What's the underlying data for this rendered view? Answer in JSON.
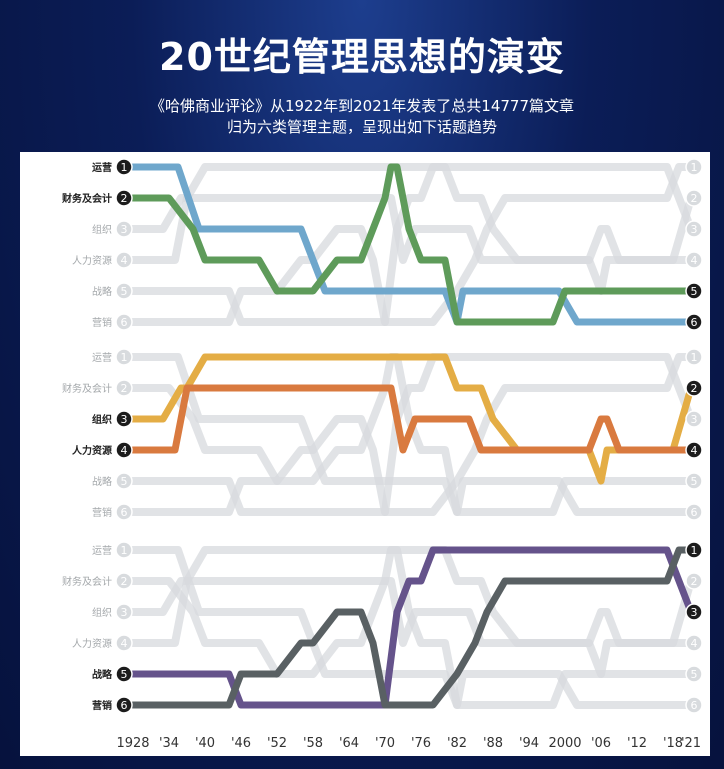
{
  "header": {
    "title": "20世纪管理思想的演变",
    "subtitle_line1": "《哈佛商业评论》从1922年到2021年发表了总共14777篇文章",
    "subtitle_line2": "归为六类管理主题，呈现出如下话题趋势"
  },
  "chart_data": {
    "type": "line",
    "title": "20世纪管理思想的演变",
    "description_lines": [
      "《哈佛商业评论》从1922年到2021年发表了总共14777篇文章",
      "归为六类管理主题，呈现出如下话题趋势"
    ],
    "x_tick_labels": [
      "1928",
      "'34",
      "'40",
      "'46",
      "'52",
      "'58",
      "'64",
      "'70",
      "'76",
      "'82",
      "'88",
      "'94",
      "2000",
      "'06",
      "'12",
      "'18",
      "'21"
    ],
    "x": [
      1928,
      1934,
      1940,
      1946,
      1952,
      1958,
      1964,
      1970,
      1976,
      1982,
      1988,
      1994,
      2000,
      2006,
      2012,
      2018,
      2021
    ],
    "y_axis": "rank (1 = top)",
    "categories": [
      "运营",
      "财务及会计",
      "组织",
      "人力资源",
      "战略",
      "营销"
    ],
    "rank_labels": [
      "1",
      "2",
      "3",
      "4",
      "5",
      "6"
    ],
    "colors": {
      "运营": "#6fa7cc",
      "财务及会计": "#5e9b5a",
      "组织": "#e4ad45",
      "人力资源": "#d97a3f",
      "战略": "#65538b",
      "营销": "#596063",
      "background": "#d7dadd"
    },
    "panels": [
      {
        "highlighted": [
          "运营",
          "财务及会计"
        ],
        "series": [
          {
            "name": "运营",
            "color": "#6fa7cc",
            "points": [
              [
                1928,
                1
              ],
              [
                1934,
                1
              ],
              [
                1935.5,
                1
              ],
              [
                1939,
                3
              ],
              [
                1940,
                3
              ],
              [
                1944,
                3
              ],
              [
                1952,
                3
              ],
              [
                1956,
                3
              ],
              [
                1958,
                4
              ],
              [
                1960,
                5
              ],
              [
                1972,
                5
              ],
              [
                1980,
                5
              ],
              [
                1982,
                6
              ],
              [
                1983,
                5
              ],
              [
                1994,
                5
              ],
              [
                1999,
                5
              ],
              [
                2002,
                6
              ],
              [
                2021,
                6
              ]
            ]
          },
          {
            "name": "财务及会计",
            "color": "#5e9b5a",
            "points": [
              [
                1928,
                2
              ],
              [
                1932,
                2
              ],
              [
                1934,
                2
              ],
              [
                1936,
                2.5
              ],
              [
                1938,
                3
              ],
              [
                1940,
                4
              ],
              [
                1946,
                4
              ],
              [
                1949,
                4
              ],
              [
                1952,
                5
              ],
              [
                1958,
                5
              ],
              [
                1962,
                4
              ],
              [
                1966,
                4
              ],
              [
                1968,
                3
              ],
              [
                1970,
                2
              ],
              [
                1971,
                1
              ],
              [
                1972,
                1
              ],
              [
                1973,
                2
              ],
              [
                1974,
                3
              ],
              [
                1976,
                4
              ],
              [
                1980,
                4
              ],
              [
                1982,
                6
              ],
              [
                1984,
                6
              ],
              [
                1998,
                6
              ],
              [
                2000,
                5
              ],
              [
                2021,
                5
              ]
            ]
          }
        ]
      },
      {
        "highlighted": [
          "组织",
          "人力资源"
        ],
        "series": [
          {
            "name": "组织",
            "color": "#e4ad45",
            "points": [
              [
                1928,
                3
              ],
              [
                1933,
                3
              ],
              [
                1936,
                2
              ],
              [
                1937,
                2
              ],
              [
                1940,
                1
              ],
              [
                1964,
                1
              ],
              [
                1980,
                1
              ],
              [
                1982,
                2
              ],
              [
                1986,
                2
              ],
              [
                1988,
                3
              ],
              [
                1992,
                4
              ],
              [
                2001,
                4
              ],
              [
                2004,
                4
              ],
              [
                2006,
                5
              ],
              [
                2007,
                4
              ],
              [
                2012,
                4
              ],
              [
                2018,
                4
              ],
              [
                2021,
                2
              ]
            ]
          },
          {
            "name": "人力资源",
            "color": "#d97a3f",
            "points": [
              [
                1928,
                4
              ],
              [
                1935,
                4
              ],
              [
                1937,
                2
              ],
              [
                1946,
                2
              ],
              [
                1970,
                2
              ],
              [
                1971,
                2
              ],
              [
                1973,
                4
              ],
              [
                1975,
                3
              ],
              [
                1980,
                3
              ],
              [
                1984,
                3
              ],
              [
                1986,
                4
              ],
              [
                1988,
                4
              ],
              [
                2004,
                4
              ],
              [
                2006,
                3
              ],
              [
                2007,
                3
              ],
              [
                2009,
                4
              ],
              [
                2021,
                4
              ]
            ]
          }
        ]
      },
      {
        "highlighted": [
          "战略",
          "营销"
        ],
        "series": [
          {
            "name": "战略",
            "color": "#65538b",
            "points": [
              [
                1928,
                5
              ],
              [
                1938,
                5
              ],
              [
                1944,
                5
              ],
              [
                1946,
                6
              ],
              [
                1968,
                6
              ],
              [
                1970,
                6
              ],
              [
                1972,
                3
              ],
              [
                1974,
                2
              ],
              [
                1976,
                2
              ],
              [
                1978,
                1
              ],
              [
                1980,
                1
              ],
              [
                2017,
                1
              ],
              [
                2019,
                2
              ],
              [
                2021,
                3
              ]
            ]
          },
          {
            "name": "营销",
            "color": "#596063",
            "points": [
              [
                1928,
                6
              ],
              [
                1940,
                6
              ],
              [
                1944,
                6
              ],
              [
                1946,
                5
              ],
              [
                1950,
                5
              ],
              [
                1952,
                5
              ],
              [
                1956,
                4
              ],
              [
                1958,
                4
              ],
              [
                1962,
                3
              ],
              [
                1966,
                3
              ],
              [
                1968,
                4
              ],
              [
                1970,
                6
              ],
              [
                1972,
                6
              ],
              [
                1974,
                6
              ],
              [
                1978,
                6
              ],
              [
                1982,
                5
              ],
              [
                1985,
                4
              ],
              [
                1987,
                3
              ],
              [
                1990,
                2
              ],
              [
                1992,
                2
              ],
              [
                2017,
                2
              ],
              [
                2019,
                1
              ],
              [
                2021,
                1
              ]
            ]
          }
        ]
      }
    ]
  }
}
